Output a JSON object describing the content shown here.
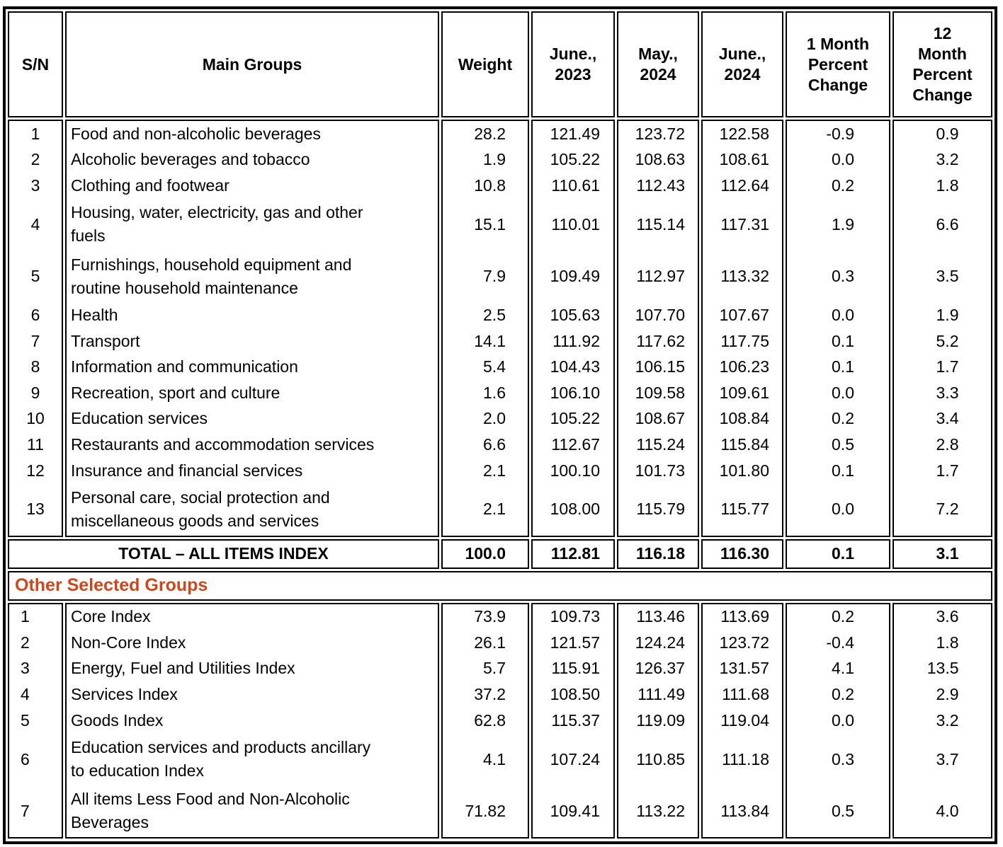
{
  "header": {
    "sn": "S/N",
    "group": "Main Groups",
    "weight": "Weight",
    "jun_2023": "June.,\n2023",
    "may_2024": "May.,\n2024",
    "jun_2024": "June.,\n2024",
    "one_month": "1 Month\nPercent\nChange",
    "twelve_month": "12\nMonth\nPercent\nChange"
  },
  "main_table": {
    "rows": [
      {
        "sn": "1",
        "group": "Food and non-alcoholic beverages",
        "weight": "28.2",
        "jun_2023": "121.49",
        "may_2024": "123.72",
        "jun_2024": "122.58",
        "one_month": "-0.9",
        "twelve_month": "0.9",
        "lines": 1
      },
      {
        "sn": "2",
        "group": "Alcoholic beverages and tobacco",
        "weight": "1.9",
        "jun_2023": "105.22",
        "may_2024": "108.63",
        "jun_2024": "108.61",
        "one_month": "0.0",
        "twelve_month": "3.2",
        "lines": 1
      },
      {
        "sn": "3",
        "group": "Clothing and footwear",
        "weight": "10.8",
        "jun_2023": "110.61",
        "may_2024": "112.43",
        "jun_2024": "112.64",
        "one_month": "0.2",
        "twelve_month": "1.8",
        "lines": 1
      },
      {
        "sn": "4",
        "group": "Housing, water, electricity, gas and other\nfuels",
        "weight": "15.1",
        "jun_2023": "110.01",
        "may_2024": "115.14",
        "jun_2024": "117.31",
        "one_month": "1.9",
        "twelve_month": "6.6",
        "lines": 2
      },
      {
        "sn": "5",
        "group": "Furnishings, household equipment and\nroutine household maintenance",
        "weight": "7.9",
        "jun_2023": "109.49",
        "may_2024": "112.97",
        "jun_2024": "113.32",
        "one_month": "0.3",
        "twelve_month": "3.5",
        "lines": 2
      },
      {
        "sn": "6",
        "group": "Health",
        "weight": "2.5",
        "jun_2023": "105.63",
        "may_2024": "107.70",
        "jun_2024": "107.67",
        "one_month": "0.0",
        "twelve_month": "1.9",
        "lines": 1
      },
      {
        "sn": "7",
        "group": "Transport",
        "weight": "14.1",
        "jun_2023": "111.92",
        "may_2024": "117.62",
        "jun_2024": "117.75",
        "one_month": "0.1",
        "twelve_month": "5.2",
        "lines": 1
      },
      {
        "sn": "8",
        "group": "Information and communication",
        "weight": "5.4",
        "jun_2023": "104.43",
        "may_2024": "106.15",
        "jun_2024": "106.23",
        "one_month": "0.1",
        "twelve_month": "1.7",
        "lines": 1
      },
      {
        "sn": "9",
        "group": "Recreation, sport and culture",
        "weight": "1.6",
        "jun_2023": "106.10",
        "may_2024": "109.58",
        "jun_2024": "109.61",
        "one_month": "0.0",
        "twelve_month": "3.3",
        "lines": 1
      },
      {
        "sn": "10",
        "group": "Education services",
        "weight": "2.0",
        "jun_2023": "105.22",
        "may_2024": "108.67",
        "jun_2024": "108.84",
        "one_month": "0.2",
        "twelve_month": "3.4",
        "lines": 1
      },
      {
        "sn": "11",
        "group": "Restaurants and accommodation services",
        "weight": "6.6",
        "jun_2023": "112.67",
        "may_2024": "115.24",
        "jun_2024": "115.84",
        "one_month": "0.5",
        "twelve_month": "2.8",
        "lines": 1
      },
      {
        "sn": "12",
        "group": "Insurance and financial services",
        "weight": "2.1",
        "jun_2023": "100.10",
        "may_2024": "101.73",
        "jun_2024": "101.80",
        "one_month": "0.1",
        "twelve_month": "1.7",
        "lines": 1
      },
      {
        "sn": "13",
        "group": "Personal care, social protection and\nmiscellaneous goods and services",
        "weight": "2.1",
        "jun_2023": "108.00",
        "may_2024": "115.79",
        "jun_2024": "115.77",
        "one_month": "0.0",
        "twelve_month": "7.2",
        "lines": 2
      }
    ],
    "total": {
      "label": "TOTAL – ALL ITEMS INDEX",
      "weight": "100.0",
      "jun_2023": "112.81",
      "may_2024": "116.18",
      "jun_2024": "116.30",
      "one_month": "0.1",
      "twelve_month": "3.1"
    }
  },
  "other_groups": {
    "title": "Other Selected Groups",
    "title_color": "#D0461B",
    "rows": [
      {
        "sn": "1",
        "group": "Core Index",
        "weight": "73.9",
        "jun_2023": "109.73",
        "may_2024": "113.46",
        "jun_2024": "113.69",
        "one_month": "0.2",
        "twelve_month": "3.6",
        "lines": 1
      },
      {
        "sn": "2",
        "group": "Non-Core Index",
        "weight": "26.1",
        "jun_2023": "121.57",
        "may_2024": "124.24",
        "jun_2024": "123.72",
        "one_month": "-0.4",
        "twelve_month": "1.8",
        "lines": 1
      },
      {
        "sn": "3",
        "group": "Energy, Fuel and Utilities Index",
        "weight": "5.7",
        "jun_2023": "115.91",
        "may_2024": "126.37",
        "jun_2024": "131.57",
        "one_month": "4.1",
        "twelve_month": "13.5",
        "lines": 1
      },
      {
        "sn": "4",
        "group": "Services Index",
        "weight": "37.2",
        "jun_2023": "108.50",
        "may_2024": "111.49",
        "jun_2024": "111.68",
        "one_month": "0.2",
        "twelve_month": "2.9",
        "lines": 1
      },
      {
        "sn": "5",
        "group": "Goods Index",
        "weight": "62.8",
        "jun_2023": "115.37",
        "may_2024": "119.09",
        "jun_2024": "119.04",
        "one_month": "0.0",
        "twelve_month": "3.2",
        "lines": 1
      },
      {
        "sn": "6",
        "group": "Education services and products ancillary\nto education Index",
        "weight": "4.1",
        "jun_2023": "107.24",
        "may_2024": "110.85",
        "jun_2024": "111.18",
        "one_month": "0.3",
        "twelve_month": "3.7",
        "lines": 2
      },
      {
        "sn": "7",
        "group": "All items Less Food and Non-Alcoholic\nBeverages",
        "weight": "71.82",
        "jun_2023": "109.41",
        "may_2024": "113.22",
        "jun_2024": "113.84",
        "one_month": "0.5",
        "twelve_month": "4.0",
        "lines": 2
      }
    ]
  }
}
